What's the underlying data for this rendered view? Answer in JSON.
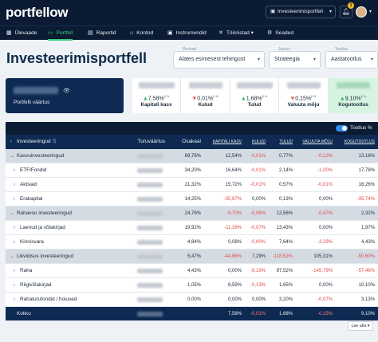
{
  "app": {
    "logo": "portfellow"
  },
  "header": {
    "portfolio_select": "Investeerimisportfell",
    "notification_count": "1"
  },
  "nav": {
    "items": [
      {
        "label": "Ülevaade",
        "icon": "grid-icon"
      },
      {
        "label": "Portfell",
        "icon": "wallet-icon",
        "active": true
      },
      {
        "label": "Raportid",
        "icon": "chart-icon"
      },
      {
        "label": "Kontod",
        "icon": "bank-icon"
      },
      {
        "label": "Instrumendid",
        "icon": "document-icon"
      },
      {
        "label": "Tööriistad",
        "icon": "tools-icon"
      },
      {
        "label": "Seaded",
        "icon": "gear-icon"
      }
    ]
  },
  "page": {
    "title": "Investeerimisportfell",
    "filters": [
      {
        "label": "Periood",
        "value": "Alates esimesest tehingust"
      },
      {
        "label": "Jaotus",
        "value": "Strateegia"
      },
      {
        "label": "Tootlus",
        "value": "Aastatootlus"
      }
    ]
  },
  "summary": {
    "value_label": "Portfelli väärtus",
    "stats": [
      {
        "label": "Kapitali kasv",
        "pct": "7,58%",
        "dir": "up"
      },
      {
        "label": "Kulud",
        "pct": "0,01%",
        "dir": "down"
      },
      {
        "label": "Tulud",
        "pct": "1,68%",
        "dir": "up"
      },
      {
        "label": "Valuuta mõju",
        "pct": "0,15%",
        "dir": "down"
      },
      {
        "label": "Kogutootlus",
        "pct": "9,10%",
        "dir": "up"
      }
    ],
    "pa": "p.a."
  },
  "table": {
    "toggle_label": "Tootlus %",
    "headers": {
      "name": "Investeeringud",
      "value": "Turuväärtus",
      "share": "Osakaal",
      "capital": "KAPITALI KASV",
      "costs": "KULUD",
      "income": "TULUD",
      "fx": "VALUUTA MÕJU",
      "total": "KOGUTOOTLUS"
    },
    "rows": [
      {
        "name": "Kasvuinvesteeringud",
        "group": true,
        "share": "69,76%",
        "capital": "12,54%",
        "costs": "-0,01%",
        "income": "0,77%",
        "fx": "-0,12%",
        "total": "13,18%"
      },
      {
        "name": "ETF/Fondid",
        "share": "34,20%",
        "capital": "16,64%",
        "costs": "-0,01%",
        "income": "2,14%",
        "fx": "-1,00%",
        "total": "17,78%"
      },
      {
        "name": "Aktsiad",
        "share": "21,32%",
        "capital": "15,72%",
        "costs": "-0,01%",
        "income": "0,57%",
        "fx": "-0,01%",
        "total": "16,26%"
      },
      {
        "name": "Erakapital",
        "share": "14,25%",
        "capital": "-35,87%",
        "costs": "0,00%",
        "income": "0,13%",
        "fx": "0,00%",
        "total": "-35,74%"
      },
      {
        "name": "Rahavoo investeeringud",
        "group": true,
        "share": "24,76%",
        "capital": "-9,70%",
        "costs": "-0,06%",
        "income": "12,56%",
        "fx": "-0,47%",
        "total": "2,32%"
      },
      {
        "name": "Laenud ja võlakirjad",
        "share": "19,92%",
        "capital": "-11,39%",
        "costs": "-0,07%",
        "income": "13,43%",
        "fx": "0,00%",
        "total": "1,97%"
      },
      {
        "name": "Kinnisvara",
        "share": "4,84%",
        "capital": "0,08%",
        "costs": "-0,00%",
        "income": "7,64%",
        "fx": "-3,29%",
        "total": "4,43%"
      },
      {
        "name": "Likviidsus investeeringud",
        "group": true,
        "share": "5,47%",
        "capital": "-44,68%",
        "costs": "7,29%",
        "income": "-118,52%",
        "fx": "105,31%",
        "total": "-50,60%"
      },
      {
        "name": "Raha",
        "share": "4,43%",
        "capital": "0,00%",
        "costs": "-9,19%",
        "income": "97,52%",
        "fx": "-145,79%",
        "total": "-57,46%"
      },
      {
        "name": "Riigivõlakirjad",
        "share": "1,05%",
        "capital": "8,59%",
        "costs": "-0,13%",
        "income": "1,65%",
        "fx": "0,00%",
        "total": "10,10%"
      },
      {
        "name": "Rahaturufondid / hoiused",
        "share": "0,00%",
        "capital": "0,00%",
        "costs": "0,00%",
        "income": "3,20%",
        "fx": "-0,07%",
        "total": "3,13%"
      },
      {
        "name": "Kokku",
        "total_row": true,
        "share": "",
        "capital": "7,58%",
        "costs": "-0,01%",
        "income": "1,68%",
        "fx": "-0,15%",
        "total": "9,10%"
      }
    ],
    "load_more": "Lae alla"
  }
}
